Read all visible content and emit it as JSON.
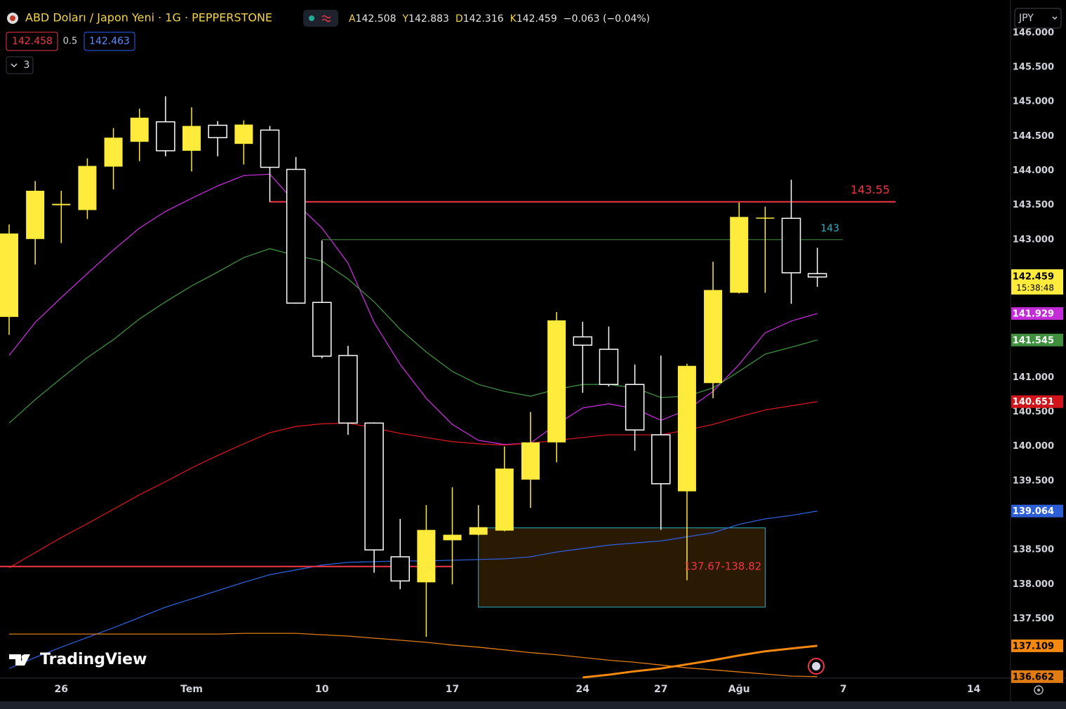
{
  "chart_data": {
    "type": "candlestick",
    "title": "ABD Doları / Japon Yeni · 1G · PEPPERSTONE",
    "ohlc": [
      {
        "label": "A",
        "value": 142.508
      },
      {
        "label": "Y",
        "value": 142.883
      },
      {
        "label": "D",
        "value": 142.316
      },
      {
        "label": "K",
        "value": 142.459
      }
    ],
    "change": "−0.063 (−0.04%)",
    "bid": "142.458",
    "spread": "0.5",
    "ask": "142.463",
    "indicator_count": "3",
    "currency": "JPY",
    "countdown": "15:38:48",
    "watermark": "TradingView",
    "categories": [
      null,
      null,
      "26",
      null,
      null,
      null,
      null,
      "Tem",
      null,
      null,
      null,
      null,
      "10",
      null,
      null,
      null,
      null,
      "17",
      null,
      null,
      null,
      null,
      "24",
      null,
      null,
      "27",
      null,
      null,
      "Ağu",
      null,
      null,
      null,
      "7",
      null,
      null,
      null,
      null,
      "14",
      null
    ],
    "open": [
      141.88,
      143.01,
      143.5,
      143.43,
      144.06,
      144.42,
      144.71,
      144.29,
      144.66,
      144.39,
      144.59,
      144.02,
      142.09,
      141.32,
      140.34,
      138.4,
      138.03,
      138.64,
      138.72,
      138.78,
      139.52,
      140.06,
      141.59,
      141.41,
      140.9,
      140.17,
      139.35,
      140.92,
      142.23,
      143.31,
      143.31,
      142.508,
      null,
      null,
      null,
      null,
      null,
      null,
      null
    ],
    "high": [
      143.22,
      143.85,
      143.71,
      144.18,
      144.62,
      144.9,
      145.08,
      144.92,
      144.72,
      144.73,
      144.65,
      144.2,
      142.99,
      141.46,
      140.35,
      138.95,
      139.15,
      139.41,
      139.15,
      140.0,
      140.5,
      141.95,
      141.81,
      141.74,
      141.19,
      141.32,
      141.2,
      142.68,
      143.54,
      143.48,
      143.87,
      142.883,
      null,
      null,
      null,
      null,
      null,
      null,
      null
    ],
    "low": [
      141.62,
      142.64,
      142.95,
      143.3,
      143.73,
      144.14,
      144.21,
      143.99,
      144.21,
      144.09,
      143.55,
      142.07,
      141.28,
      140.17,
      138.17,
      137.93,
      137.24,
      138.0,
      138.71,
      138.77,
      139.11,
      139.77,
      140.78,
      140.87,
      139.94,
      138.79,
      138.06,
      140.7,
      142.22,
      142.23,
      142.07,
      142.316,
      null,
      null,
      null,
      null,
      null,
      null,
      null
    ],
    "close": [
      143.09,
      143.71,
      143.52,
      144.07,
      144.48,
      144.77,
      144.29,
      144.65,
      144.48,
      144.67,
      144.05,
      142.08,
      141.31,
      140.34,
      138.5,
      138.05,
      138.79,
      138.72,
      138.83,
      139.68,
      140.06,
      141.83,
      141.47,
      140.9,
      140.24,
      139.46,
      141.17,
      142.27,
      143.33,
      143.32,
      142.52,
      142.459,
      null,
      null,
      null,
      null,
      null,
      null,
      null
    ],
    "up_color": "#ffeb3b",
    "down_color": "#ffffff",
    "series": [
      {
        "color": "#c42bd9",
        "values": [
          141.32,
          141.8,
          142.16,
          142.51,
          142.85,
          143.17,
          143.41,
          143.6,
          143.78,
          143.93,
          143.95,
          143.53,
          143.17,
          142.66,
          141.8,
          141.19,
          140.7,
          140.32,
          140.09,
          140.03,
          140.05,
          140.32,
          140.56,
          140.62,
          140.55,
          140.38,
          140.53,
          140.8,
          141.19,
          141.65,
          141.82,
          141.929,
          null,
          null,
          null,
          null,
          null,
          null,
          null
        ]
      },
      {
        "color": "#3f8f3f",
        "values": [
          140.34,
          140.68,
          140.99,
          141.29,
          141.55,
          141.85,
          142.1,
          142.33,
          142.53,
          142.74,
          142.87,
          142.77,
          142.69,
          142.43,
          142.1,
          141.7,
          141.37,
          141.09,
          140.9,
          140.8,
          140.73,
          140.83,
          140.9,
          140.9,
          140.85,
          140.71,
          140.73,
          140.85,
          141.09,
          141.34,
          141.44,
          141.545,
          null,
          null,
          null,
          null,
          null,
          null,
          null
        ]
      },
      {
        "color": "#d0161b",
        "values": [
          138.24,
          138.46,
          138.68,
          138.88,
          139.09,
          139.3,
          139.49,
          139.69,
          139.87,
          140.04,
          140.2,
          140.29,
          140.33,
          140.34,
          140.27,
          140.19,
          140.13,
          140.07,
          140.04,
          140.02,
          140.05,
          140.09,
          140.13,
          140.17,
          140.17,
          140.17,
          140.24,
          140.32,
          140.43,
          140.53,
          140.59,
          140.651,
          null,
          null,
          null,
          null,
          null,
          null,
          null
        ]
      },
      {
        "color": "#2c5fd6",
        "values": [
          136.78,
          136.94,
          137.09,
          137.23,
          137.37,
          137.52,
          137.67,
          137.79,
          137.91,
          138.03,
          138.14,
          138.21,
          138.28,
          138.32,
          138.33,
          138.34,
          138.34,
          138.35,
          138.36,
          138.37,
          138.4,
          138.47,
          138.52,
          138.57,
          138.6,
          138.63,
          138.69,
          138.75,
          138.87,
          138.95,
          139.0,
          139.064,
          null,
          null,
          null,
          null,
          null,
          null,
          null
        ]
      },
      {
        "color": "#e07c12",
        "values": [
          137.28,
          137.28,
          137.28,
          137.28,
          137.28,
          137.28,
          137.28,
          137.28,
          137.28,
          137.29,
          137.29,
          137.29,
          137.27,
          137.25,
          137.22,
          137.19,
          137.16,
          137.12,
          137.09,
          137.05,
          137.01,
          136.98,
          136.94,
          136.9,
          136.87,
          136.83,
          136.79,
          136.76,
          136.73,
          136.7,
          136.67,
          136.662,
          null,
          null,
          null,
          null,
          null,
          null,
          null
        ]
      },
      {
        "color": "#f5890f",
        "values": [
          null,
          null,
          null,
          null,
          null,
          null,
          null,
          null,
          null,
          null,
          null,
          null,
          null,
          null,
          null,
          null,
          null,
          null,
          null,
          null,
          null,
          null,
          136.65,
          136.69,
          136.74,
          136.78,
          136.84,
          136.9,
          136.97,
          137.03,
          137.07,
          137.109,
          null,
          null,
          null,
          null,
          null,
          null,
          null
        ]
      }
    ],
    "levels": [
      {
        "value": 143.55,
        "label": "143.55",
        "color": "#f23645"
      },
      {
        "value": 143,
        "label": "143",
        "color": "#3f8f3f"
      },
      {
        "value": 138.26,
        "color": "#f23645"
      }
    ],
    "zone": {
      "low": 137.67,
      "high": 138.82,
      "label": "137.67-138.82",
      "color": "#2ab2c4"
    },
    "ylim": [
      136.64,
      146.07
    ],
    "yticks": [
      {
        "value": 146,
        "label": "146.000"
      },
      {
        "value": 145.5,
        "label": "145.500"
      },
      {
        "value": 145,
        "label": "145.000"
      },
      {
        "value": 144.5,
        "label": "144.500"
      },
      {
        "value": 144,
        "label": "144.000"
      },
      {
        "value": 143.5,
        "label": "143.500"
      },
      {
        "value": 143,
        "label": "143.000"
      },
      {
        "value": 141,
        "label": "141.000"
      },
      {
        "value": 140.5,
        "label": "140.500"
      },
      {
        "value": 140,
        "label": "140.000"
      },
      {
        "value": 139.5,
        "label": "139.500"
      },
      {
        "value": 138.5,
        "label": "138.500"
      },
      {
        "value": 138,
        "label": "138.000"
      },
      {
        "value": 137.5,
        "label": "137.500"
      }
    ],
    "grid": false
  }
}
